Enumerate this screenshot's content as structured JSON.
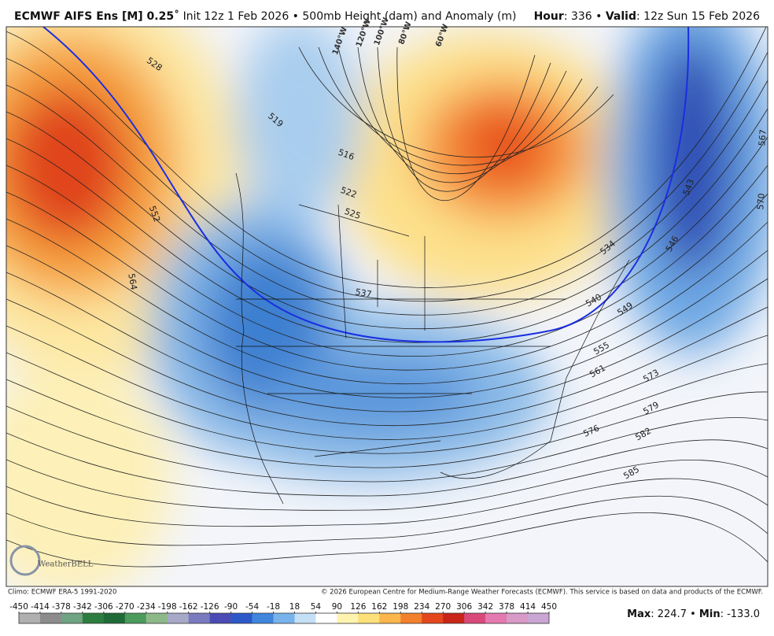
{
  "header": {
    "title": "ECMWF AIFS Ens [M] 0.25˚",
    "subtitle": "Init 12z 1 Feb 2026 • 500mb Height (dam) and Anomaly (m)",
    "hour_label": "Hour",
    "hour_value": ": 336 • ",
    "valid_label": "Valid",
    "valid_value": ": 12z Sun 15 Feb 2026"
  },
  "map": {
    "contour_labels": [
      "528",
      "552",
      "564",
      "519",
      "516",
      "522",
      "525",
      "537",
      "540",
      "543",
      "546",
      "549",
      "555",
      "561",
      "567",
      "570",
      "573",
      "576",
      "579",
      "582",
      "585",
      "534"
    ],
    "longitude_labels": [
      "140°W",
      "120°W",
      "100°W",
      "80°W",
      "60°W"
    ],
    "logo": "WeatherBELL"
  },
  "footer": {
    "climo": "Climo: ECMWF ERA-5 1991-2020",
    "copyright": "© 2026 European Centre for Medium-Range Weather Forecasts (ECMWF). This service is based on data and products of the ECMWF."
  },
  "colorbar": {
    "labels": [
      -450,
      -414,
      -378,
      -342,
      -306,
      -270,
      -234,
      -198,
      -162,
      -126,
      -90,
      -54,
      -18,
      18,
      54,
      90,
      126,
      162,
      198,
      234,
      270,
      306,
      342,
      378,
      414,
      450
    ]
  },
  "stats": {
    "max_label": "Max",
    "max_value": ": 224.7 • ",
    "min_label": "Min",
    "min_value": ": -133.0"
  }
}
